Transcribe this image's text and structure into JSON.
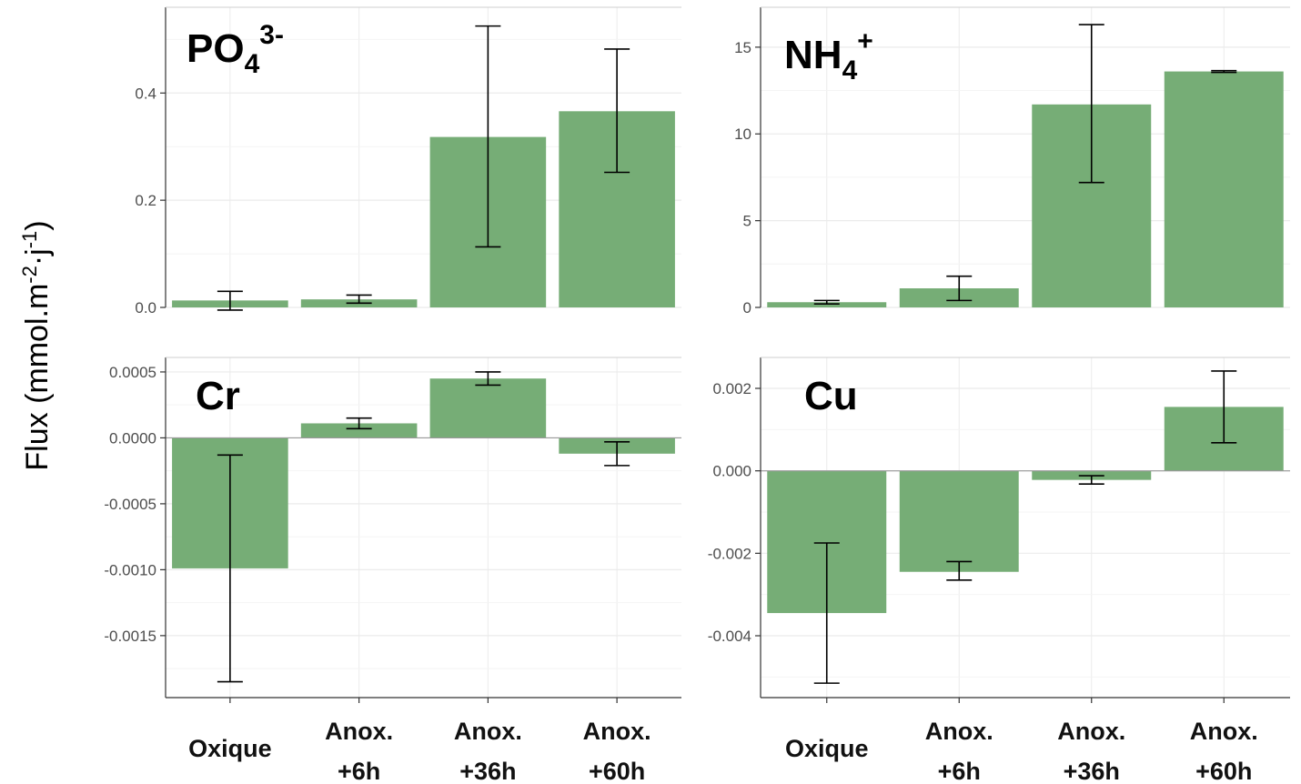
{
  "y_label": {
    "text": "Flux (mmol.m",
    "sup1": "-2",
    "mid": "·j",
    "sup2": "-1",
    "end": ")"
  },
  "colors": {
    "bar": "#76ad76",
    "grid": "#ebebeb",
    "axis": "#333333",
    "zero": "#999999"
  },
  "chart_data": [
    {
      "type": "bar",
      "panel_label": {
        "base": "PO",
        "sub": "4",
        "sup": "3-"
      },
      "categories": [
        "Oxique",
        "Anox. +6h",
        "Anox. +36h",
        "Anox. +60h"
      ],
      "values": [
        0.013,
        0.015,
        0.318,
        0.366
      ],
      "error_low": [
        -0.005,
        0.008,
        0.113,
        0.252
      ],
      "error_high": [
        0.03,
        0.023,
        0.525,
        0.482
      ],
      "yticks": [
        "0.0",
        "0.2",
        "0.4"
      ],
      "ylim": [
        0,
        0.56
      ],
      "grid": true
    },
    {
      "type": "bar",
      "panel_label": {
        "base": "NH",
        "sub": "4",
        "sup": "+"
      },
      "categories": [
        "Oxique",
        "Anox. +6h",
        "Anox. +36h",
        "Anox. +60h"
      ],
      "values": [
        0.3,
        1.1,
        11.7,
        13.6
      ],
      "error_low": [
        0.2,
        0.4,
        7.2,
        13.55
      ],
      "error_high": [
        0.4,
        1.8,
        16.3,
        13.65
      ],
      "yticks": [
        "0",
        "5",
        "10",
        "15"
      ],
      "ylim": [
        0,
        17.3
      ],
      "grid": true
    },
    {
      "type": "bar",
      "panel_label": {
        "base": "Cr",
        "sub": "",
        "sup": ""
      },
      "categories": [
        "Oxique",
        "Anox. +6h",
        "Anox. +36h",
        "Anox. +60h"
      ],
      "values": [
        -0.00099,
        0.00011,
        0.00045,
        -0.00012
      ],
      "error_low": [
        -0.00185,
        7e-05,
        0.0004,
        -0.00021
      ],
      "error_high": [
        -0.00013,
        0.00015,
        0.0005,
        -3e-05
      ],
      "yticks": [
        "-0.0015",
        "-0.0010",
        "-0.0005",
        "0.0000",
        "0.0005"
      ],
      "ylim": [
        -0.00197,
        0.00061
      ],
      "grid": true
    },
    {
      "type": "bar",
      "panel_label": {
        "base": "Cu",
        "sub": "",
        "sup": ""
      },
      "categories": [
        "Oxique",
        "Anox. +6h",
        "Anox. +36h",
        "Anox. +60h"
      ],
      "values": [
        -0.00345,
        -0.00245,
        -0.00022,
        0.00155
      ],
      "error_low": [
        -0.00515,
        -0.00265,
        -0.00032,
        0.00068
      ],
      "error_high": [
        -0.00175,
        -0.0022,
        -0.00012,
        0.00242
      ],
      "yticks": [
        "-0.004",
        "-0.002",
        "0.000",
        "0.002"
      ],
      "ylim": [
        -0.0055,
        0.00275
      ],
      "grid": true
    }
  ]
}
